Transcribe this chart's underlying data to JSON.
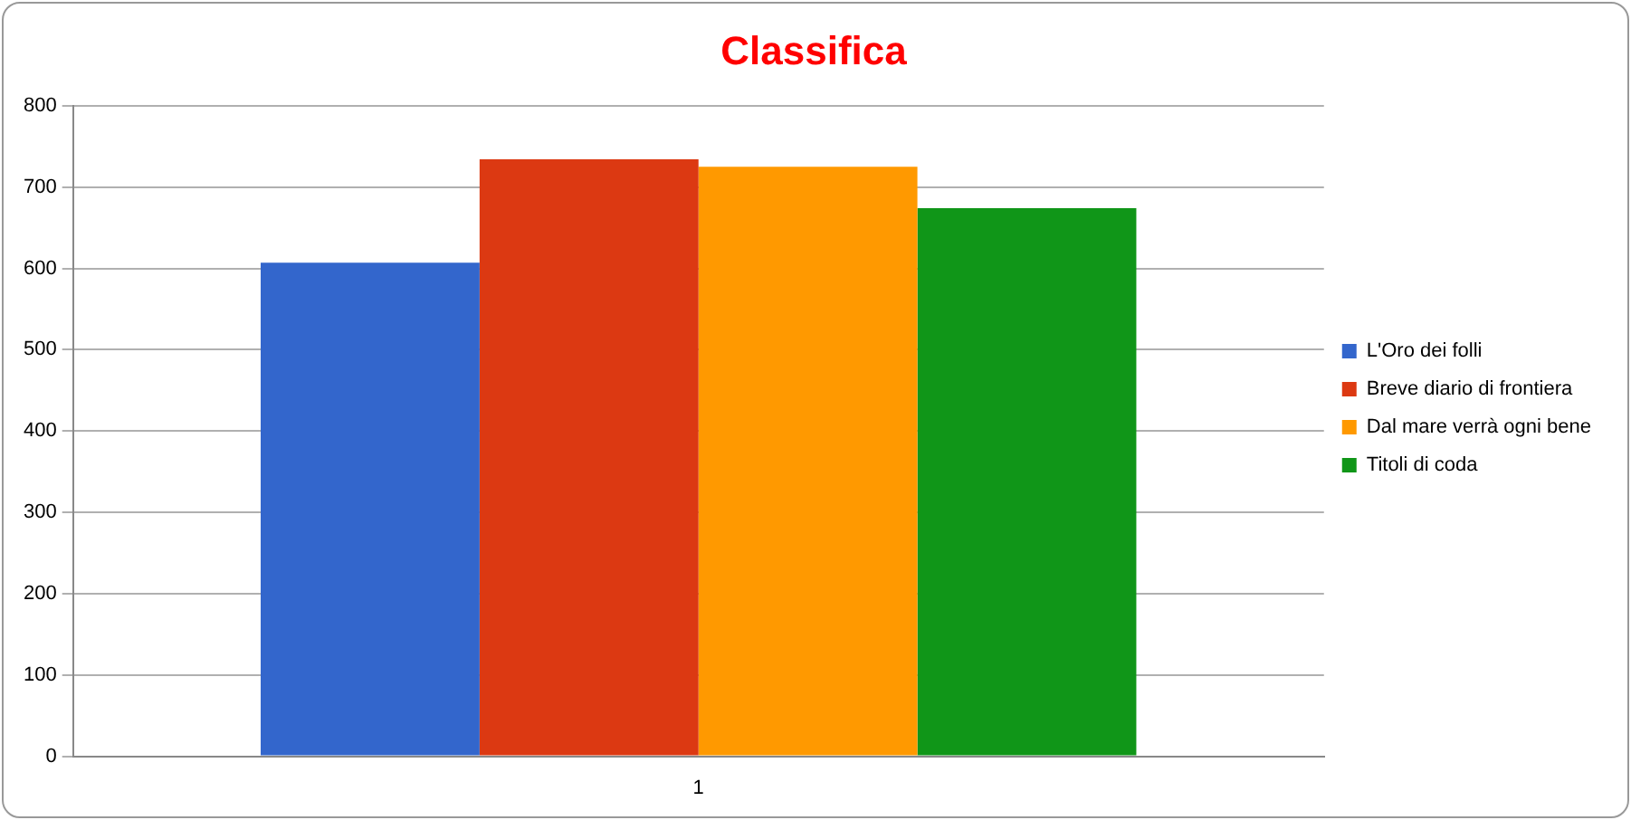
{
  "chart_data": {
    "type": "bar",
    "title": "Classifica",
    "categories": [
      "1"
    ],
    "series": [
      {
        "name": "L'Oro dei folli",
        "color": "#3366cc",
        "values": [
          607
        ]
      },
      {
        "name": "Breve diario di frontiera",
        "color": "#dc3912",
        "values": [
          734
        ]
      },
      {
        "name": "Dal mare verrà ogni bene",
        "color": "#ff9900",
        "values": [
          725
        ]
      },
      {
        "name": "Titoli di coda",
        "color": "#109618",
        "values": [
          674
        ]
      }
    ],
    "ylim": [
      0,
      800
    ],
    "yticks": [
      0,
      100,
      200,
      300,
      400,
      500,
      600,
      700,
      800
    ],
    "grid": "y",
    "legend": "right"
  }
}
